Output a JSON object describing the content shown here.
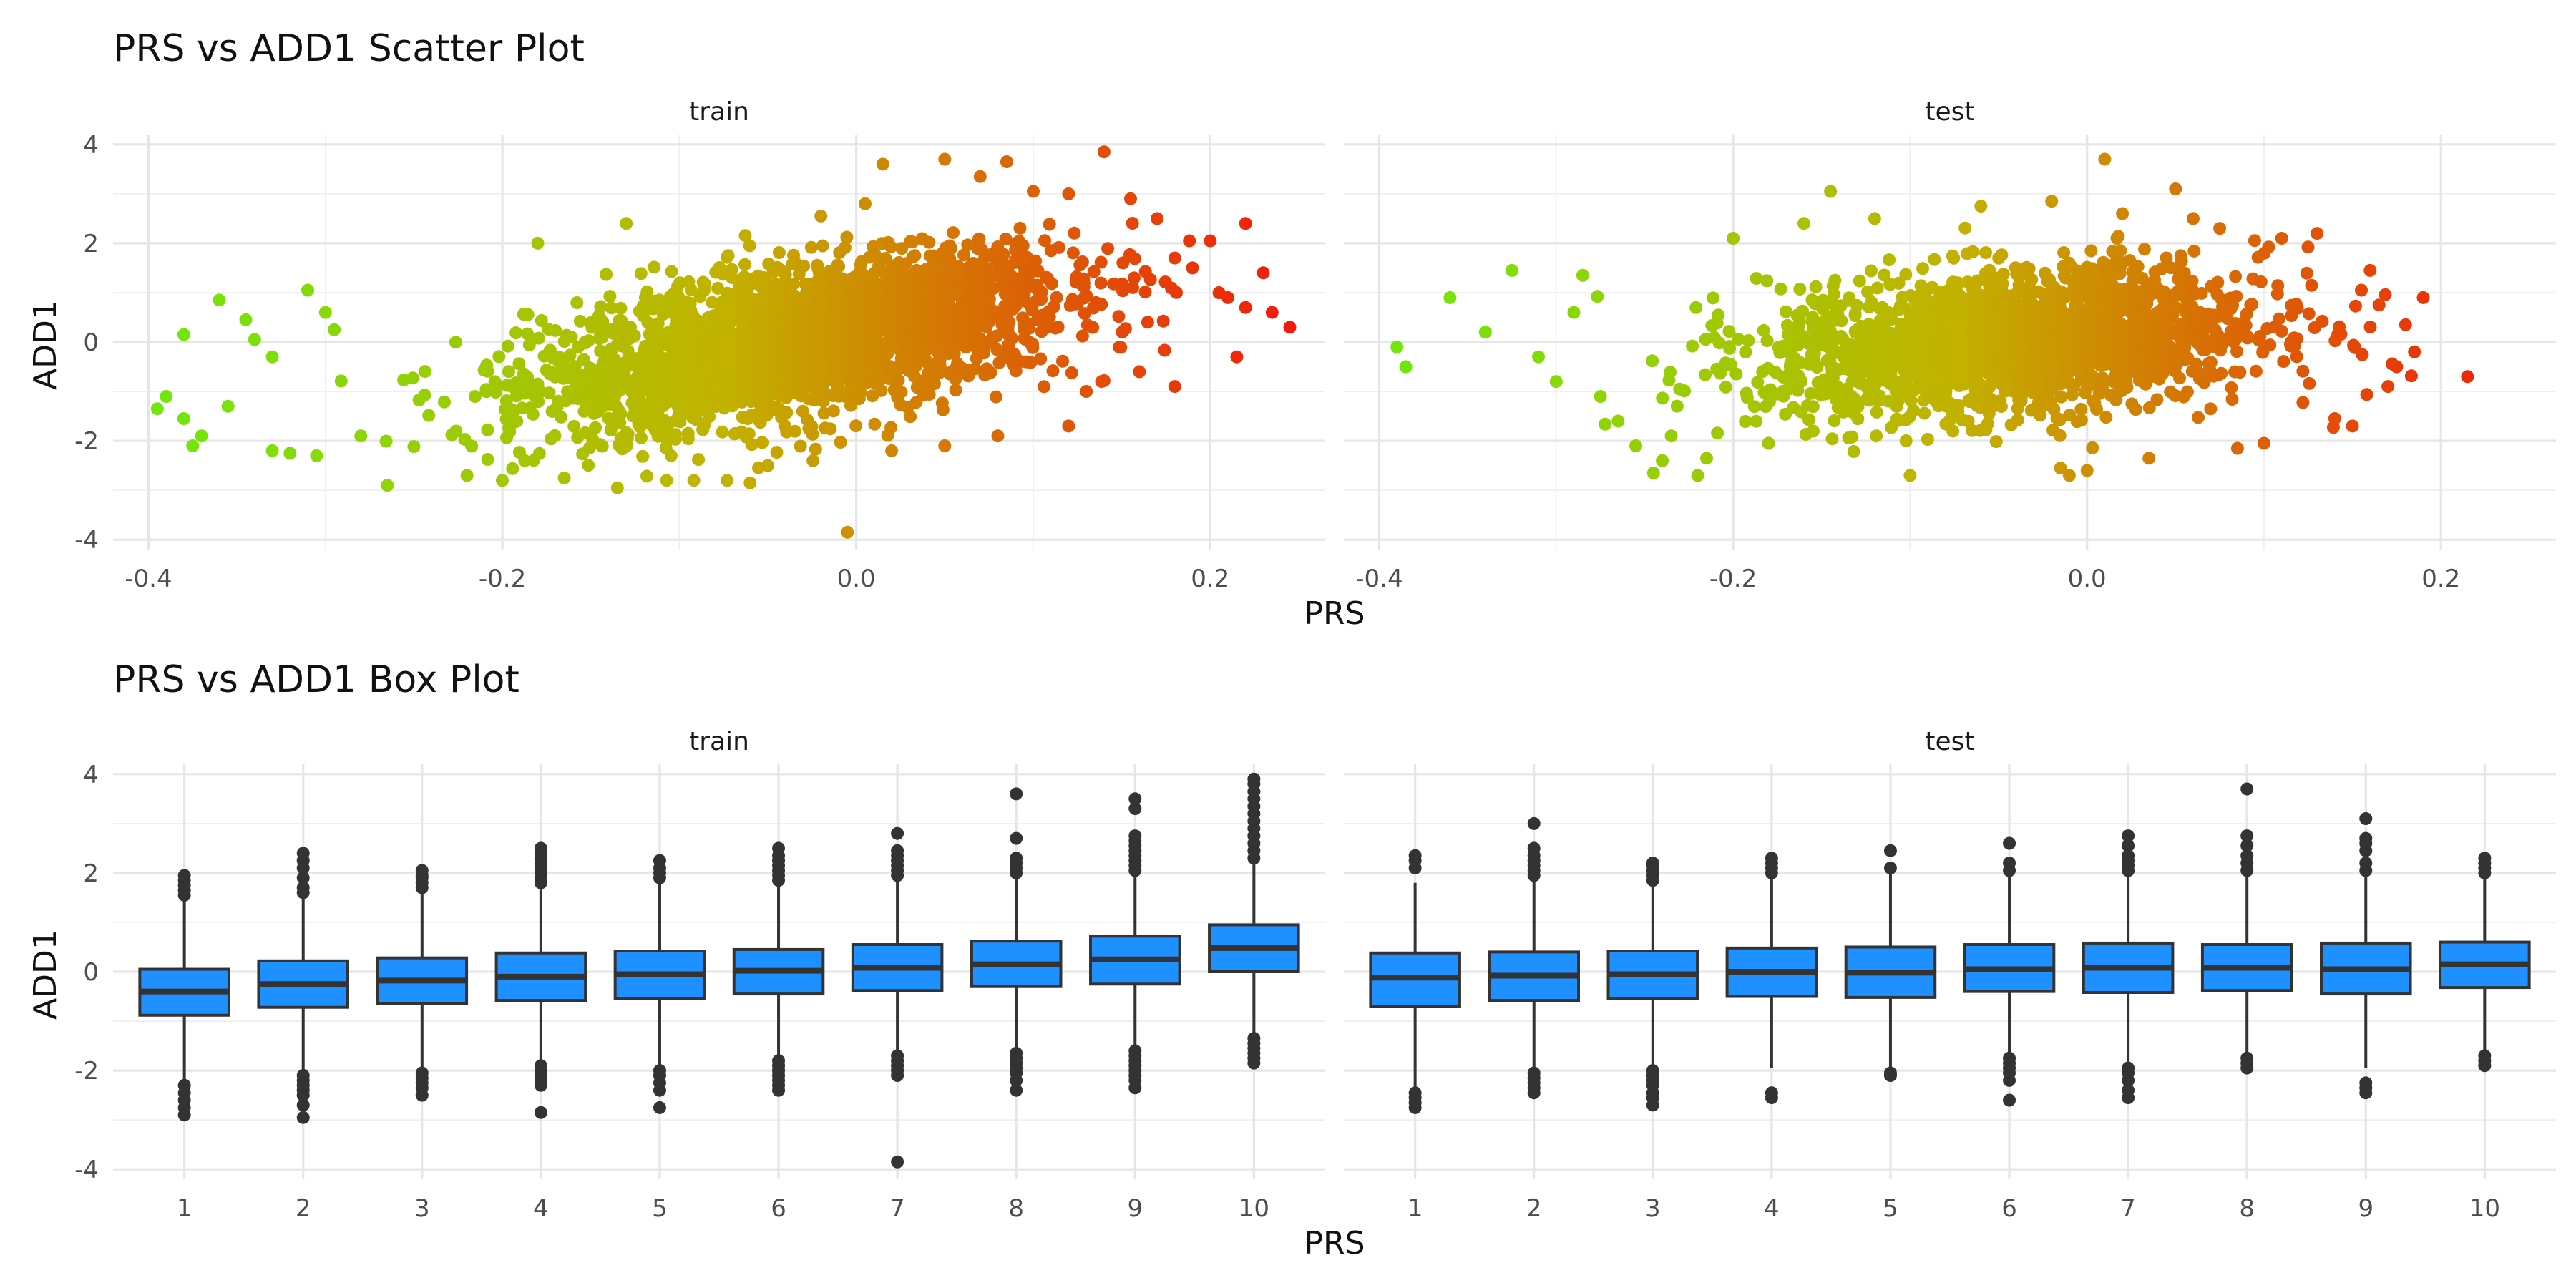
{
  "chart_data": [
    {
      "type": "scatter",
      "title": "PRS vs ADD1 Scatter Plot",
      "xlabel": "PRS",
      "ylabel": "ADD1",
      "xlim": [
        -0.42,
        0.265
      ],
      "ylim": [
        -4.2,
        4.2
      ],
      "x_ticks": [
        "-0.4",
        "-0.2",
        "0.0",
        "0.2"
      ],
      "x_tick_values": [
        -0.4,
        -0.2,
        0.0,
        0.2
      ],
      "y_ticks": [
        "-4",
        "-2",
        "0",
        "2",
        "4"
      ],
      "y_tick_values": [
        -4,
        -2,
        0,
        2,
        4
      ],
      "grid": true,
      "color_scale": {
        "low": "#6fe80a",
        "mid": "#c2b200",
        "high": "#f21b0a",
        "mapped_to": "PRS"
      },
      "facets": [
        {
          "panel": "train",
          "cloud": {
            "x_center": -0.03,
            "x_sd": 0.075,
            "slope": 6.2,
            "resid_sd": 0.72,
            "n": 2600
          },
          "points": [
            [
              -0.395,
              -1.35
            ],
            [
              -0.39,
              -1.1
            ],
            [
              -0.38,
              -1.55
            ],
            [
              -0.375,
              -2.1
            ],
            [
              -0.37,
              -1.9
            ],
            [
              -0.38,
              0.15
            ],
            [
              -0.36,
              0.85
            ],
            [
              -0.355,
              -1.3
            ],
            [
              -0.345,
              0.45
            ],
            [
              -0.34,
              0.05
            ],
            [
              -0.33,
              -0.3
            ],
            [
              -0.33,
              -2.2
            ],
            [
              -0.32,
              -2.25
            ],
            [
              -0.31,
              1.05
            ],
            [
              -0.305,
              -2.3
            ],
            [
              -0.3,
              0.6
            ],
            [
              -0.295,
              0.25
            ],
            [
              -0.265,
              -2.9
            ],
            [
              -0.28,
              -1.9
            ],
            [
              -0.22,
              -2.7
            ],
            [
              -0.18,
              2.0
            ],
            [
              -0.165,
              -2.75
            ],
            [
              -0.135,
              -2.95
            ],
            [
              -0.13,
              2.4
            ],
            [
              -0.06,
              -2.85
            ],
            [
              -0.02,
              2.55
            ],
            [
              -0.005,
              -3.85
            ],
            [
              0.005,
              2.8
            ],
            [
              0.015,
              3.6
            ],
            [
              0.05,
              3.7
            ],
            [
              0.07,
              3.35
            ],
            [
              0.085,
              3.65
            ],
            [
              0.1,
              3.05
            ],
            [
              0.12,
              3.0
            ],
            [
              0.14,
              3.85
            ],
            [
              0.155,
              2.9
            ],
            [
              0.17,
              2.5
            ],
            [
              0.18,
              1.7
            ],
            [
              0.19,
              1.5
            ],
            [
              0.2,
              2.05
            ],
            [
              0.205,
              1.0
            ],
            [
              0.215,
              -0.3
            ],
            [
              0.21,
              0.9
            ],
            [
              0.22,
              2.4
            ],
            [
              0.22,
              0.7
            ],
            [
              0.23,
              1.4
            ],
            [
              0.235,
              0.6
            ],
            [
              0.245,
              0.3
            ],
            [
              0.18,
              -0.9
            ],
            [
              0.16,
              -0.6
            ],
            [
              0.13,
              -1.0
            ],
            [
              0.12,
              -1.7
            ],
            [
              0.08,
              -1.9
            ],
            [
              0.05,
              -2.1
            ],
            [
              0.02,
              -2.2
            ],
            [
              -0.05,
              -2.5
            ]
          ]
        },
        {
          "panel": "test",
          "cloud": {
            "x_center": -0.04,
            "x_sd": 0.07,
            "slope": 2.5,
            "resid_sd": 0.72,
            "n": 1900
          },
          "points": [
            [
              -0.39,
              -0.1
            ],
            [
              -0.385,
              -0.5
            ],
            [
              -0.36,
              0.9
            ],
            [
              -0.34,
              0.2
            ],
            [
              -0.325,
              1.45
            ],
            [
              -0.31,
              -0.3
            ],
            [
              -0.3,
              -0.8
            ],
            [
              -0.29,
              0.6
            ],
            [
              -0.285,
              1.35
            ],
            [
              -0.275,
              -1.1
            ],
            [
              -0.265,
              -1.6
            ],
            [
              -0.255,
              -2.1
            ],
            [
              -0.245,
              -2.65
            ],
            [
              -0.24,
              -2.4
            ],
            [
              -0.235,
              -1.9
            ],
            [
              -0.22,
              -2.7
            ],
            [
              -0.215,
              -2.35
            ],
            [
              -0.2,
              2.1
            ],
            [
              -0.18,
              -2.05
            ],
            [
              -0.16,
              2.4
            ],
            [
              -0.145,
              3.05
            ],
            [
              -0.12,
              2.5
            ],
            [
              -0.1,
              -2.7
            ],
            [
              -0.06,
              2.75
            ],
            [
              -0.02,
              2.85
            ],
            [
              -0.015,
              -2.55
            ],
            [
              -0.01,
              -2.7
            ],
            [
              0.0,
              -2.6
            ],
            [
              0.01,
              3.7
            ],
            [
              0.02,
              2.6
            ],
            [
              0.035,
              -2.35
            ],
            [
              0.05,
              3.1
            ],
            [
              0.06,
              2.5
            ],
            [
              0.075,
              2.3
            ],
            [
              0.085,
              -2.15
            ],
            [
              0.1,
              -2.05
            ],
            [
              0.11,
              2.1
            ],
            [
              0.13,
              2.2
            ],
            [
              0.14,
              -1.55
            ],
            [
              0.15,
              -1.7
            ],
            [
              0.155,
              1.05
            ],
            [
              0.16,
              1.45
            ],
            [
              0.165,
              0.75
            ],
            [
              0.17,
              -0.9
            ],
            [
              0.175,
              -0.5
            ],
            [
              0.18,
              0.35
            ],
            [
              0.185,
              -0.2
            ],
            [
              0.19,
              0.9
            ],
            [
              0.215,
              -0.7
            ]
          ]
        }
      ]
    },
    {
      "type": "box",
      "title": "PRS vs ADD1 Box Plot",
      "xlabel": "PRS",
      "ylabel": "ADD1",
      "categories": [
        "1",
        "2",
        "3",
        "4",
        "5",
        "6",
        "7",
        "8",
        "9",
        "10"
      ],
      "ylim": [
        -4.2,
        4.2
      ],
      "y_ticks": [
        "-4",
        "-2",
        "0",
        "2",
        "4"
      ],
      "y_tick_values": [
        -4,
        -2,
        0,
        2,
        4
      ],
      "grid": true,
      "box_fill": "#1e90ff",
      "box_line": "#333333",
      "facets": [
        {
          "panel": "train",
          "boxes": [
            {
              "q1": -0.88,
              "median": -0.4,
              "q3": 0.05,
              "wlo": -2.25,
              "whi": 1.45,
              "outliers": [
                -2.3,
                -2.45,
                -2.6,
                -2.75,
                -2.9,
                1.55,
                1.65,
                1.75,
                1.85,
                1.95
              ]
            },
            {
              "q1": -0.72,
              "median": -0.25,
              "q3": 0.22,
              "wlo": -2.05,
              "whi": 1.55,
              "outliers": [
                -2.1,
                -2.2,
                -2.3,
                -2.4,
                -2.5,
                -2.7,
                -2.95,
                1.6,
                1.7,
                1.9,
                2.1,
                2.25,
                2.4
              ]
            },
            {
              "q1": -0.65,
              "median": -0.18,
              "q3": 0.28,
              "wlo": -1.95,
              "whi": 1.65,
              "outliers": [
                -2.05,
                -2.15,
                -2.25,
                -2.35,
                -2.5,
                1.7,
                1.8,
                1.9,
                1.95,
                2.05
              ]
            },
            {
              "q1": -0.58,
              "median": -0.1,
              "q3": 0.38,
              "wlo": -1.85,
              "whi": 1.75,
              "outliers": [
                -1.9,
                -2.0,
                -2.1,
                -2.2,
                -2.3,
                -2.85,
                1.8,
                1.9,
                2.0,
                2.1,
                2.2,
                2.3,
                2.4,
                2.5
              ]
            },
            {
              "q1": -0.55,
              "median": -0.05,
              "q3": 0.42,
              "wlo": -1.9,
              "whi": 1.85,
              "outliers": [
                -2.0,
                -2.1,
                -2.25,
                -2.4,
                -2.75,
                1.9,
                2.0,
                2.1,
                2.25
              ]
            },
            {
              "q1": -0.45,
              "median": 0.02,
              "q3": 0.45,
              "wlo": -1.75,
              "whi": 1.8,
              "outliers": [
                -1.8,
                -1.9,
                -2.0,
                -2.1,
                -2.2,
                -2.3,
                -2.4,
                1.85,
                1.95,
                2.05,
                2.15,
                2.25,
                2.35,
                2.5
              ]
            },
            {
              "q1": -0.38,
              "median": 0.08,
              "q3": 0.55,
              "wlo": -1.65,
              "whi": 1.9,
              "outliers": [
                -1.7,
                -1.8,
                -1.9,
                -2.0,
                -2.1,
                -3.85,
                1.95,
                2.05,
                2.15,
                2.25,
                2.35,
                2.45,
                2.8
              ]
            },
            {
              "q1": -0.3,
              "median": 0.15,
              "q3": 0.62,
              "wlo": -1.6,
              "whi": 1.95,
              "outliers": [
                -1.65,
                -1.75,
                -1.85,
                -1.95,
                -2.05,
                -2.2,
                -2.4,
                2.0,
                2.1,
                2.2,
                2.3,
                2.7,
                3.6
              ]
            },
            {
              "q1": -0.25,
              "median": 0.25,
              "q3": 0.72,
              "wlo": -1.55,
              "whi": 2.0,
              "outliers": [
                -1.6,
                -1.7,
                -1.8,
                -1.9,
                -2.0,
                -2.1,
                -2.2,
                -2.35,
                2.05,
                2.15,
                2.25,
                2.35,
                2.45,
                2.55,
                2.65,
                2.75,
                3.3,
                3.5
              ]
            },
            {
              "q1": 0.0,
              "median": 0.48,
              "q3": 0.95,
              "wlo": -1.3,
              "whi": 2.25,
              "outliers": [
                -1.35,
                -1.45,
                -1.55,
                -1.65,
                -1.75,
                -1.85,
                2.3,
                2.45,
                2.6,
                2.75,
                2.9,
                3.05,
                3.2,
                3.35,
                3.5,
                3.65,
                3.8,
                3.9
              ]
            }
          ]
        },
        {
          "panel": "test",
          "boxes": [
            {
              "q1": -0.7,
              "median": -0.12,
              "q3": 0.38,
              "wlo": -2.35,
              "whi": 1.8,
              "outliers": [
                -2.45,
                -2.55,
                -2.65,
                -2.75,
                2.1,
                2.25,
                2.35
              ]
            },
            {
              "q1": -0.58,
              "median": -0.08,
              "q3": 0.4,
              "wlo": -2.0,
              "whi": 1.9,
              "outliers": [
                -2.05,
                -2.15,
                -2.25,
                -2.35,
                -2.45,
                1.95,
                2.05,
                2.15,
                2.25,
                2.35,
                2.5,
                3.0
              ]
            },
            {
              "q1": -0.55,
              "median": -0.05,
              "q3": 0.42,
              "wlo": -1.95,
              "whi": 1.8,
              "outliers": [
                -2.0,
                -2.1,
                -2.2,
                -2.3,
                -2.45,
                -2.55,
                -2.7,
                1.85,
                1.95,
                2.05,
                2.15,
                2.2
              ]
            },
            {
              "q1": -0.5,
              "median": 0.0,
              "q3": 0.48,
              "wlo": -1.95,
              "whi": 1.95,
              "outliers": [
                -2.45,
                -2.55,
                2.0,
                2.1,
                2.2,
                2.3
              ]
            },
            {
              "q1": -0.52,
              "median": -0.02,
              "q3": 0.5,
              "wlo": -2.0,
              "whi": 2.0,
              "outliers": [
                -2.05,
                -2.1,
                2.1,
                2.45
              ]
            },
            {
              "q1": -0.4,
              "median": 0.05,
              "q3": 0.55,
              "wlo": -1.7,
              "whi": 2.0,
              "outliers": [
                -1.75,
                -1.85,
                -1.95,
                -2.05,
                -2.2,
                -2.6,
                2.05,
                2.2,
                2.6
              ]
            },
            {
              "q1": -0.42,
              "median": 0.08,
              "q3": 0.58,
              "wlo": -1.9,
              "whi": 2.0,
              "outliers": [
                -1.95,
                -2.05,
                -2.2,
                -2.4,
                -2.55,
                2.05,
                2.15,
                2.25,
                2.35,
                2.55,
                2.75
              ]
            },
            {
              "q1": -0.38,
              "median": 0.08,
              "q3": 0.55,
              "wlo": -1.7,
              "whi": 1.95,
              "outliers": [
                -1.75,
                -1.85,
                -1.95,
                2.05,
                2.2,
                2.35,
                2.55,
                2.75,
                3.7
              ]
            },
            {
              "q1": -0.45,
              "median": 0.05,
              "q3": 0.58,
              "wlo": -1.95,
              "whi": 2.0,
              "outliers": [
                -2.25,
                -2.35,
                -2.45,
                2.05,
                2.2,
                2.45,
                2.6,
                2.7,
                3.1
              ]
            },
            {
              "q1": -0.32,
              "median": 0.15,
              "q3": 0.6,
              "wlo": -1.65,
              "whi": 1.9,
              "outliers": [
                -1.7,
                -1.8,
                -1.9,
                2.0,
                2.1,
                2.2,
                2.3
              ]
            }
          ]
        }
      ]
    }
  ]
}
